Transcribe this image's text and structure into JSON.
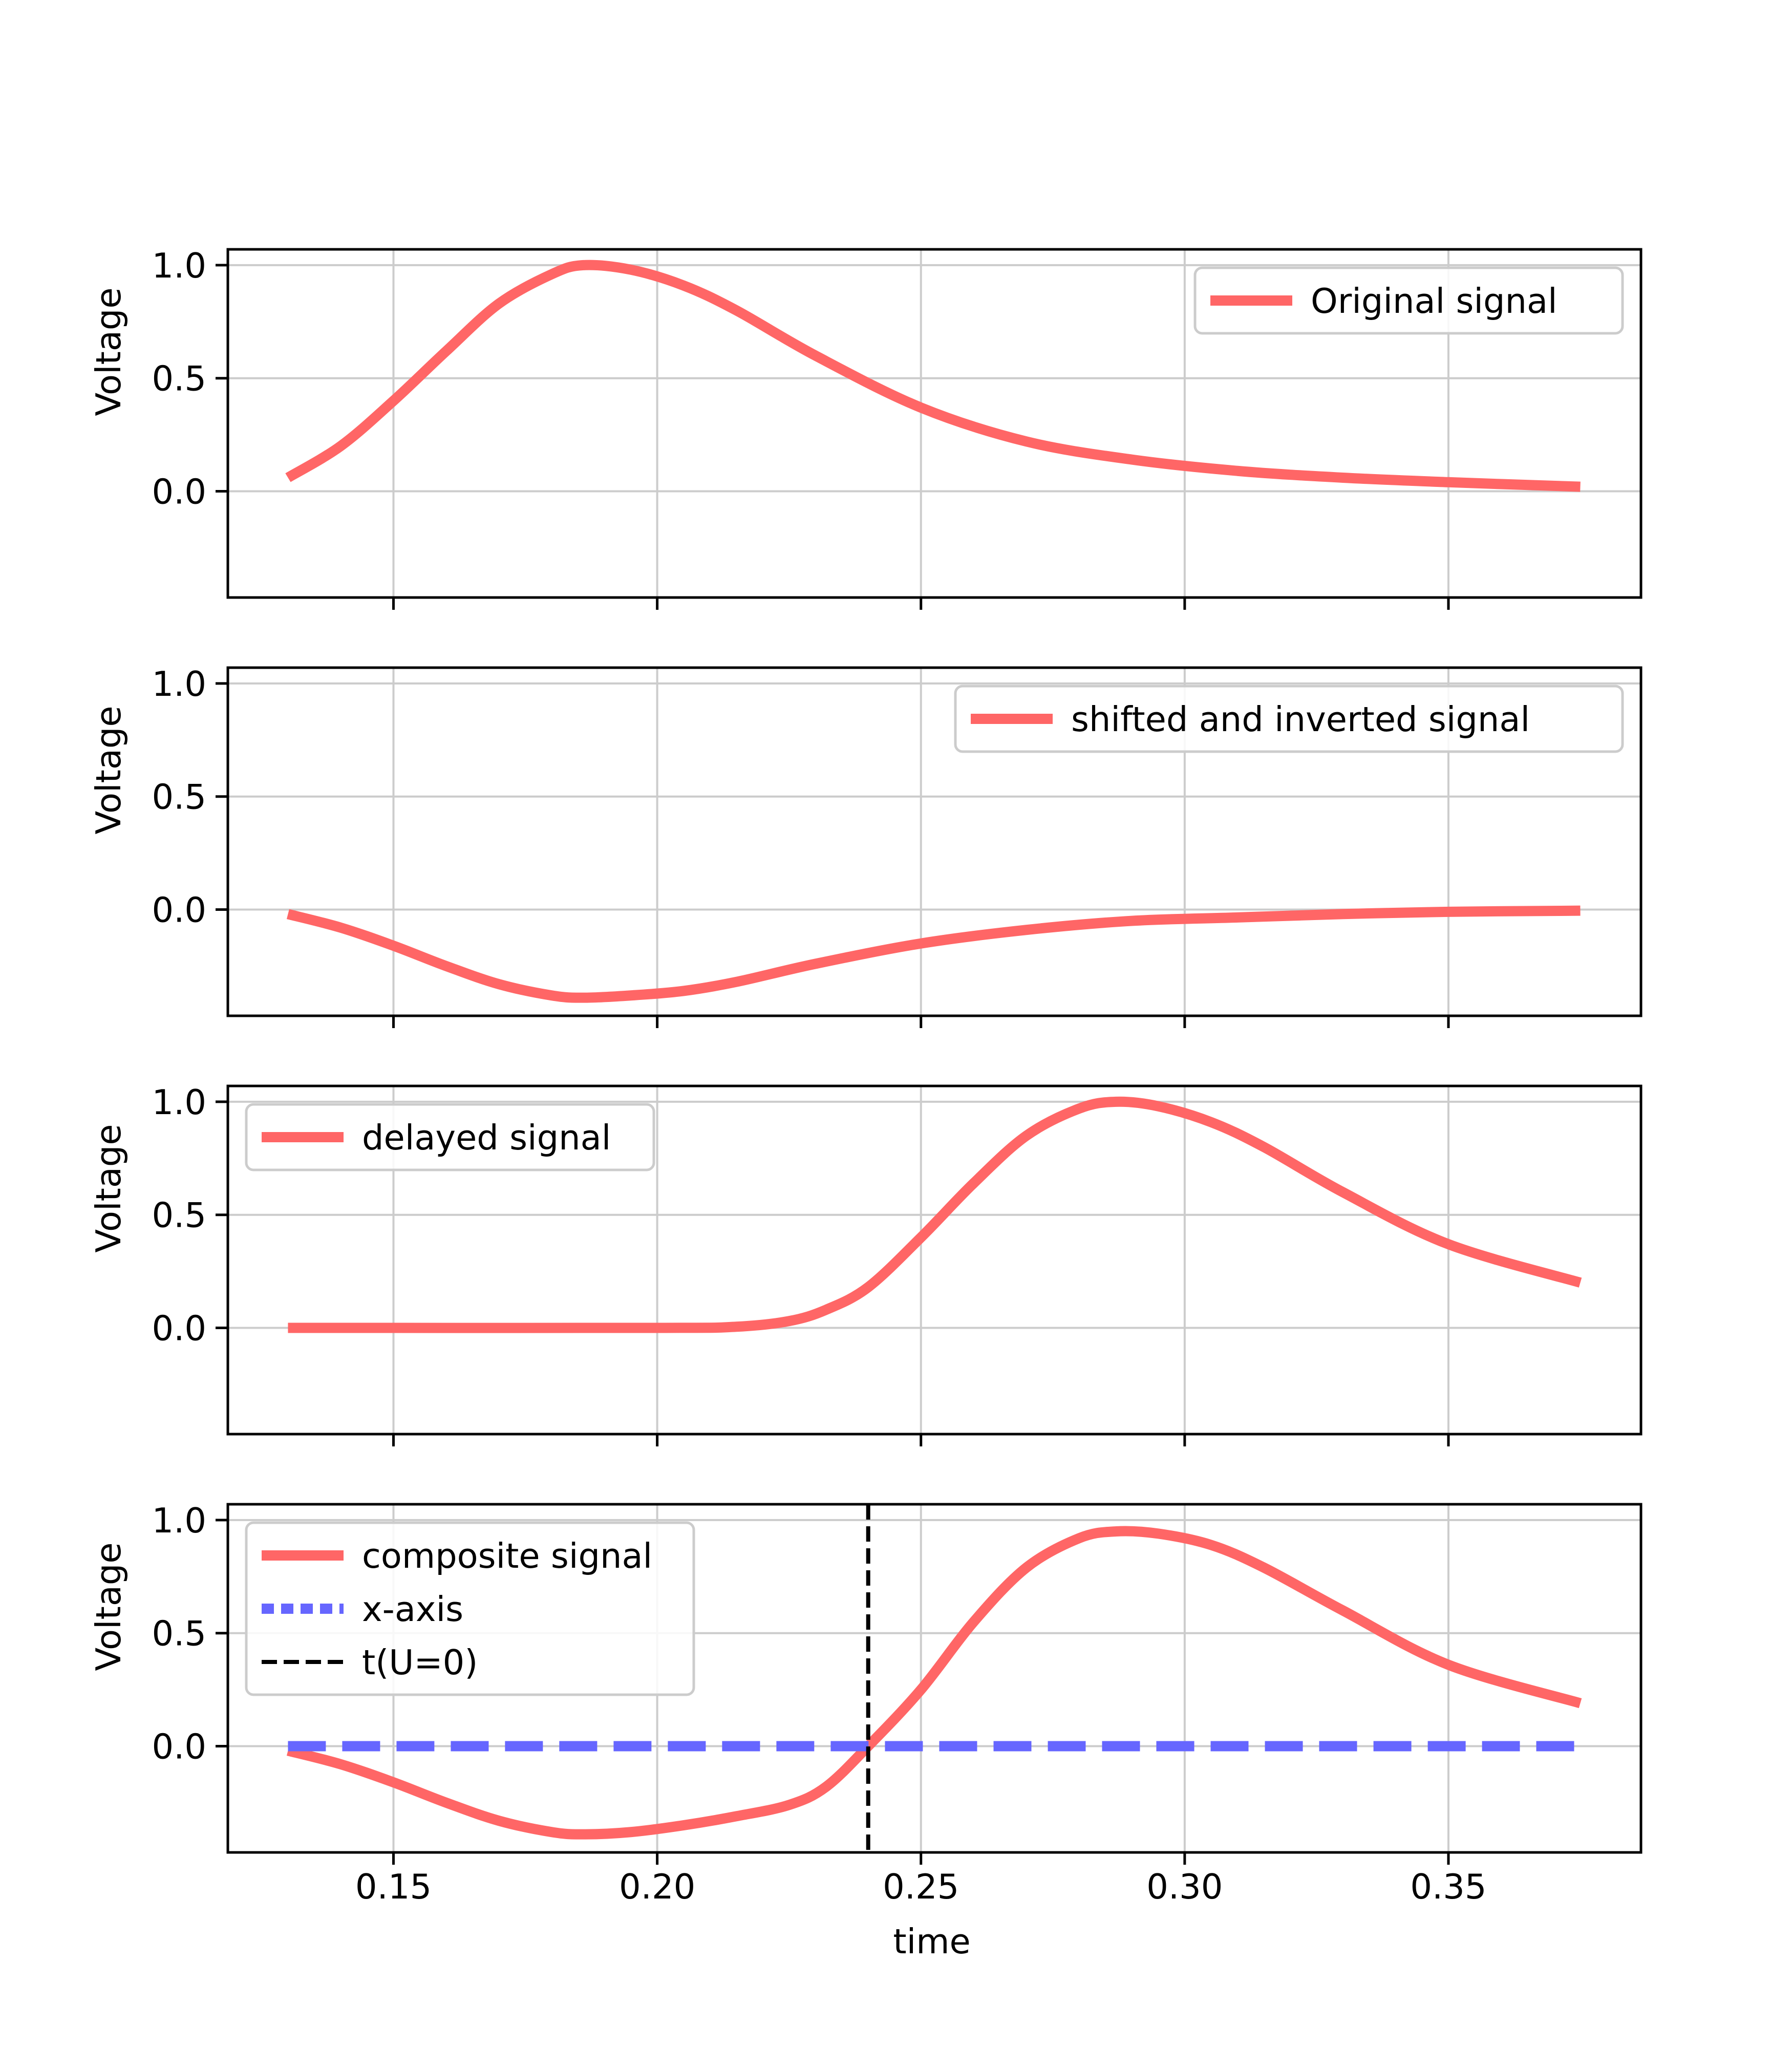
{
  "figure": {
    "xlabel": "time",
    "ylabel": "Voltage"
  },
  "colors": {
    "signal": "#ff6666",
    "x_axis": "#6666ff",
    "marker": "#000000",
    "grid": "#cccccc"
  },
  "chart_data": [
    {
      "type": "line",
      "title": "",
      "xlabel": "",
      "ylabel": "Voltage",
      "xlim": [
        0.1186,
        0.3865
      ],
      "ylim": [
        -0.47,
        1.07
      ],
      "x_ticks": [
        "0.15",
        "0.20",
        "0.25",
        "0.30",
        "0.35"
      ],
      "y_ticks": [
        "0.0",
        "0.5",
        "1.0"
      ],
      "grid": true,
      "legend_position": "upper-right",
      "series": [
        {
          "name": "Original signal",
          "style": "solid",
          "color": "#ff6666",
          "x": [
            0.13,
            0.14,
            0.15,
            0.16,
            0.17,
            0.18,
            0.186,
            0.195,
            0.205,
            0.215,
            0.23,
            0.25,
            0.27,
            0.29,
            0.31,
            0.33,
            0.35,
            0.375
          ],
          "y": [
            0.06,
            0.2,
            0.4,
            0.62,
            0.83,
            0.96,
            1.0,
            0.98,
            0.91,
            0.8,
            0.6,
            0.37,
            0.22,
            0.14,
            0.09,
            0.06,
            0.04,
            0.02
          ]
        }
      ]
    },
    {
      "type": "line",
      "title": "",
      "xlabel": "",
      "ylabel": "Voltage",
      "xlim": [
        0.1186,
        0.3865
      ],
      "ylim": [
        -0.47,
        1.07
      ],
      "x_ticks": [
        "0.15",
        "0.20",
        "0.25",
        "0.30",
        "0.35"
      ],
      "y_ticks": [
        "0.0",
        "0.5",
        "1.0"
      ],
      "grid": true,
      "legend_position": "upper-right",
      "series": [
        {
          "name": "shifted and inverted signal",
          "style": "solid",
          "color": "#ff6666",
          "x": [
            0.13,
            0.14,
            0.15,
            0.16,
            0.17,
            0.18,
            0.186,
            0.195,
            0.205,
            0.215,
            0.23,
            0.25,
            0.27,
            0.29,
            0.31,
            0.33,
            0.35,
            0.375
          ],
          "y": [
            -0.02,
            -0.08,
            -0.16,
            -0.25,
            -0.33,
            -0.38,
            -0.39,
            -0.38,
            -0.36,
            -0.32,
            -0.24,
            -0.15,
            -0.09,
            -0.05,
            -0.035,
            -0.02,
            -0.01,
            -0.005
          ]
        }
      ]
    },
    {
      "type": "line",
      "title": "",
      "xlabel": "",
      "ylabel": "Voltage",
      "xlim": [
        0.1186,
        0.3865
      ],
      "ylim": [
        -0.47,
        1.07
      ],
      "x_ticks": [
        "0.15",
        "0.20",
        "0.25",
        "0.30",
        "0.35"
      ],
      "y_ticks": [
        "0.0",
        "0.5",
        "1.0"
      ],
      "grid": true,
      "legend_position": "upper-left",
      "series": [
        {
          "name": "delayed signal",
          "style": "solid",
          "color": "#ff6666",
          "x": [
            0.13,
            0.2,
            0.215,
            0.225,
            0.232,
            0.24,
            0.25,
            0.26,
            0.27,
            0.28,
            0.287,
            0.295,
            0.305,
            0.315,
            0.33,
            0.35,
            0.375
          ],
          "y": [
            0.0,
            0.0,
            0.005,
            0.03,
            0.08,
            0.18,
            0.4,
            0.64,
            0.85,
            0.97,
            1.0,
            0.98,
            0.91,
            0.8,
            0.6,
            0.37,
            0.2
          ]
        }
      ]
    },
    {
      "type": "line",
      "title": "",
      "xlabel": "time",
      "ylabel": "Voltage",
      "xlim": [
        0.1186,
        0.3865
      ],
      "ylim": [
        -0.47,
        1.07
      ],
      "x_ticks": [
        "0.15",
        "0.20",
        "0.25",
        "0.30",
        "0.35"
      ],
      "y_ticks": [
        "0.0",
        "0.5",
        "1.0"
      ],
      "grid": true,
      "legend_position": "upper-left",
      "series": [
        {
          "name": "composite signal",
          "style": "solid",
          "color": "#ff6666",
          "x": [
            0.13,
            0.14,
            0.15,
            0.16,
            0.17,
            0.18,
            0.186,
            0.195,
            0.205,
            0.215,
            0.225,
            0.232,
            0.24,
            0.25,
            0.26,
            0.27,
            0.28,
            0.287,
            0.295,
            0.305,
            0.315,
            0.33,
            0.35,
            0.375
          ],
          "y": [
            -0.02,
            -0.08,
            -0.16,
            -0.25,
            -0.33,
            -0.38,
            -0.39,
            -0.38,
            -0.35,
            -0.31,
            -0.26,
            -0.18,
            0.0,
            0.25,
            0.55,
            0.79,
            0.92,
            0.95,
            0.94,
            0.89,
            0.79,
            0.6,
            0.36,
            0.19
          ]
        },
        {
          "name": "x-axis",
          "style": "dashed",
          "color": "#6666ff",
          "x": [
            0.13,
            0.375
          ],
          "y": [
            0.0,
            0.0
          ]
        },
        {
          "name": "t(U=0)",
          "style": "dashed",
          "color": "#000000",
          "vertical_line_x": 0.24
        }
      ]
    }
  ]
}
